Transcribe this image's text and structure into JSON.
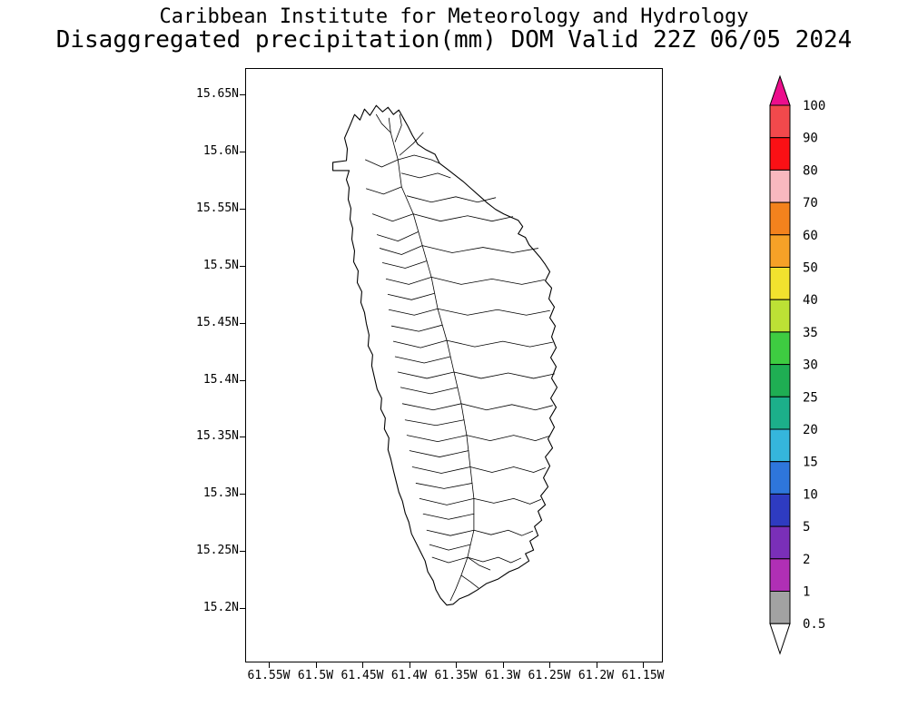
{
  "header": {
    "line1": "Caribbean Institute for Meteorology and Hydrology",
    "line2": "Disaggregated precipitation(mm) DOM Valid 22Z 06/05 2024"
  },
  "map": {
    "region": "DOM",
    "lat_ticks": [
      "15.65N",
      "15.6N",
      "15.55N",
      "15.5N",
      "15.45N",
      "15.4N",
      "15.35N",
      "15.3N",
      "15.25N",
      "15.2N"
    ],
    "lon_ticks": [
      "61.55W",
      "61.5W",
      "61.45W",
      "61.4W",
      "61.35W",
      "61.3W",
      "61.25W",
      "61.2W",
      "61.15W"
    ]
  },
  "colorbar": {
    "labels": [
      "100",
      "90",
      "80",
      "70",
      "60",
      "50",
      "40",
      "35",
      "30",
      "25",
      "20",
      "15",
      "10",
      "5",
      "2",
      "1",
      "0.5"
    ],
    "arrow_top_color": "#EC0E8C",
    "cell_colors": [
      "#F2494C",
      "#FA1015",
      "#F9B8BF",
      "#F3821D",
      "#F6A127",
      "#F2E22E",
      "#BCE135",
      "#3ECC41",
      "#1FAE53",
      "#1CAF8A",
      "#35B6DC",
      "#2E76DB",
      "#2E3BC1",
      "#7A2FB8",
      "#B02FB5",
      "#A2A2A2"
    ],
    "arrow_bottom_color": "#FFFFFF"
  }
}
